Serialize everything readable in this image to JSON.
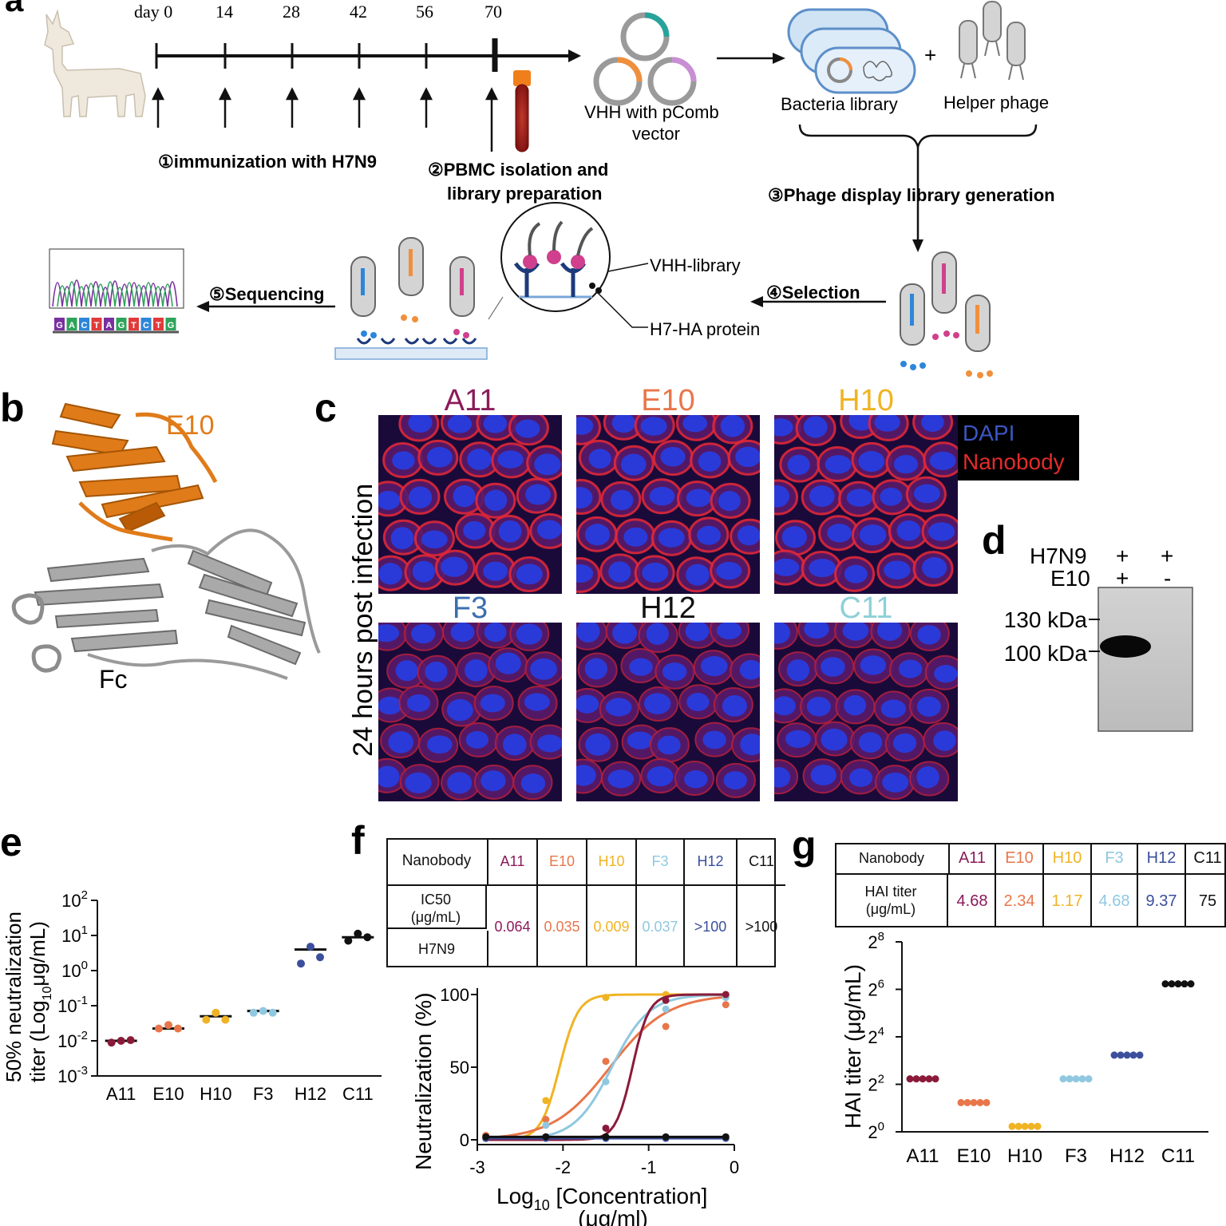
{
  "colors": {
    "A11": "#8b1a3a",
    "E10": "#e8764a",
    "H10": "#f0b323",
    "F3": "#8fc8e0",
    "H12": "#3b4f9c",
    "C11": "#111111",
    "dapi": "#3b57c4",
    "nanobody": "#e32b2b",
    "E10_structure": "#e07b1a",
    "Fc_structure": "#a9a9a9"
  },
  "panel_a": {
    "label": "a",
    "days": [
      "day 0",
      "14",
      "28",
      "42",
      "56",
      "70"
    ],
    "step1": "①immunization with H7N9",
    "step2_line1": "②PBMC isolation and",
    "step2_line2": "library preparation",
    "vector_line1": "VHH with pComb",
    "vector_line2": "vector",
    "bacteria": "Bacteria library",
    "plus": "+",
    "helper": "Helper phage",
    "step3": "③Phage display library generation",
    "step4": "④Selection",
    "step5": "⑤Sequencing",
    "vhh_label": "VHH-library",
    "h7_label": "H7-HA protein",
    "sequence_letters": [
      "G",
      "A",
      "C",
      "T",
      "A",
      "G",
      "T",
      "C",
      "T",
      "G"
    ]
  },
  "panel_b": {
    "label": "b",
    "e10": "E10",
    "fc": "Fc"
  },
  "panel_c": {
    "label": "c",
    "ylabel": "24 hours post infection",
    "images": [
      "A11",
      "E10",
      "H10",
      "F3",
      "H12",
      "C11"
    ],
    "legend_dapi": "DAPI",
    "legend_nanobody": "Nanobody"
  },
  "panel_d": {
    "label": "d",
    "row1_label": "H7N9",
    "row2_label": "E10",
    "lane1_row1": "+",
    "lane1_row2": "+",
    "lane2_row1": "+",
    "lane2_row2": "-",
    "marker_130": "130 kDa",
    "marker_100": "100 kDa"
  },
  "panel_e": {
    "label": "e"
  },
  "panel_f": {
    "label": "f",
    "table_header": "Nanobody",
    "row_label_line1": "IC50",
    "row_label_line2": "(μg/mL)",
    "row2_label": "H7N9",
    "names": [
      "A11",
      "E10",
      "H10",
      "F3",
      "H12",
      "C11"
    ],
    "values": [
      "0.064",
      "0.035",
      "0.009",
      "0.037",
      ">100",
      ">100"
    ]
  },
  "panel_g": {
    "label": "g",
    "table_header": "Nanobody",
    "row_label_line1": "HAI titer",
    "row_label_line2": "(μg/mL)",
    "names": [
      "A11",
      "E10",
      "H10",
      "F3",
      "H12",
      "C11"
    ],
    "values": [
      "4.68",
      "2.34",
      "1.17",
      "4.68",
      "9.37",
      "75"
    ]
  },
  "chart_data": [
    {
      "panel": "e",
      "type": "scatter",
      "ylabel_line1": "50% neutralization",
      "ylabel_line2": "titer (Log",
      "ylabel_sub": "10",
      "ylabel_line2_end": "μg/mL)",
      "y_scale": "log10",
      "y_ticks": [
        {
          "base": "10",
          "exp": "2"
        },
        {
          "base": "10",
          "exp": "1"
        },
        {
          "base": "10",
          "exp": "0"
        },
        {
          "base": "10",
          "exp": "-1"
        },
        {
          "base": "10",
          "exp": "-2"
        },
        {
          "base": "10",
          "exp": "-3"
        }
      ],
      "y_tick_values": [
        2,
        1,
        0,
        -1,
        -2,
        -3
      ],
      "ylim": [
        -3,
        2
      ],
      "categories": [
        "A11",
        "E10",
        "H10",
        "F3",
        "H12",
        "C11"
      ],
      "points_log10": [
        [
          -2.05,
          -2.0,
          -1.98
        ],
        [
          -1.65,
          -1.55,
          -1.65
        ],
        [
          -1.4,
          -1.2,
          -1.4
        ],
        [
          -1.2,
          -1.15,
          -1.2
        ],
        [
          0.2,
          0.68,
          0.38
        ],
        [
          0.85,
          1.05,
          0.95
        ]
      ],
      "median_log10": [
        -2.0,
        -1.65,
        -1.3,
        -1.15,
        0.6,
        0.95
      ]
    },
    {
      "panel": "f",
      "type": "line",
      "xlabel": "Log",
      "xlabel_sub": "10",
      "xlabel_end": " [Concentration]",
      "xlabel_line2": "(μg/ml)",
      "ylabel": "Neutralization (%)",
      "x_ticks": [
        "-3",
        "-2",
        "-1",
        "0"
      ],
      "x_tick_values": [
        -3,
        -2,
        -1,
        0
      ],
      "y_ticks": [
        "0",
        "50",
        "100"
      ],
      "y_tick_values": [
        0,
        50,
        100
      ],
      "xlim": [
        -3,
        0
      ],
      "ylim": [
        0,
        100
      ],
      "x": [
        -2.9,
        -2.2,
        -1.5,
        -0.8,
        -0.1
      ],
      "series": [
        {
          "key": "H10",
          "values": [
            2,
            27,
            98,
            100,
            100
          ],
          "ic50_log": -2.04,
          "hill": 4.0
        },
        {
          "key": "E10",
          "values": [
            3,
            14,
            54,
            78,
            93
          ],
          "ic50_log": -1.45,
          "hill": 1.3
        },
        {
          "key": "F3",
          "values": [
            1,
            10,
            40,
            90,
            98
          ],
          "ic50_log": -1.43,
          "hill": 2.0
        },
        {
          "key": "A11",
          "values": [
            1,
            2,
            8,
            96,
            100
          ],
          "ic50_log": -1.19,
          "hill": 4.5
        },
        {
          "key": "H12",
          "values": [
            1,
            1,
            1,
            1,
            1
          ]
        },
        {
          "key": "C11",
          "values": [
            2,
            2,
            2,
            2,
            2
          ]
        }
      ]
    },
    {
      "panel": "g",
      "type": "scatter",
      "ylabel": "HAI titer (μg/mL)",
      "y_scale": "log2",
      "y_ticks": [
        {
          "base": "2",
          "exp": "8"
        },
        {
          "base": "2",
          "exp": "6"
        },
        {
          "base": "2",
          "exp": "4"
        },
        {
          "base": "2",
          "exp": "2"
        },
        {
          "base": "2",
          "exp": "0"
        }
      ],
      "y_tick_values": [
        8,
        6,
        4,
        2,
        0
      ],
      "ylim": [
        0,
        8
      ],
      "categories": [
        "A11",
        "E10",
        "H10",
        "F3",
        "H12",
        "C11"
      ],
      "values_log2": [
        2.23,
        1.23,
        0.23,
        2.23,
        3.23,
        6.23
      ],
      "replicates": 5
    }
  ]
}
